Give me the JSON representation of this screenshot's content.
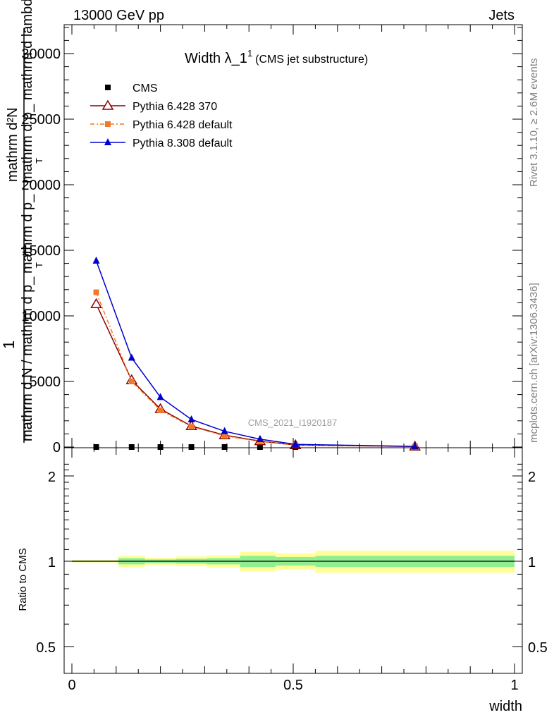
{
  "header": {
    "energy_label": "13000 GeV pp",
    "process_label": "Jets"
  },
  "side_labels": {
    "rivet": "Rivet 3.1.10, ≥ 2.6M events",
    "mcplots": "mcplots.cern.ch [arXiv:1306.3436]"
  },
  "analysis_tag": "CMS_2021_I1920187",
  "chart_data": [
    {
      "type": "line",
      "title_main": "Width λ_1",
      "title_sup": "1",
      "title_sub": "(CMS jet substructure)",
      "ylabel_top_num": "mathrm d²N",
      "ylabel_top_sub": "T",
      "ylabel_top_den": "mathrm d p_ mathrm d lambda",
      "ylabel_top_den2": "mathrm d p_",
      "ylabel_one": "1",
      "ylabel_bottom": "mathrm d N / mathrm d p_",
      "ylabel_bottom2": "mathrm d N",
      "ylabel_bottom_sub": "T",
      "xlim": [
        0,
        1
      ],
      "ylim": [
        0,
        32000
      ],
      "yticks": [
        0,
        5000,
        10000,
        15000,
        20000,
        25000,
        30000
      ],
      "ytick_labels": [
        "0",
        "5000",
        "10000",
        "15000",
        "20000",
        "25000",
        "30000"
      ],
      "log_y": false,
      "legend_position": "top-left",
      "series": [
        {
          "name": "CMS",
          "color": "#000000",
          "marker": "square",
          "x": [
            0.055,
            0.135,
            0.2,
            0.27,
            0.345,
            0.425,
            0.505,
            0.775
          ],
          "y": [
            0,
            0,
            0,
            0,
            0,
            0,
            0,
            0
          ]
        },
        {
          "name": "Pythia 6.428 370",
          "color": "#8b0000",
          "marker": "open-triangle",
          "x": [
            0.055,
            0.135,
            0.2,
            0.27,
            0.345,
            0.425,
            0.505,
            0.775
          ],
          "y": [
            10900,
            5100,
            2900,
            1600,
            900,
            450,
            150,
            40
          ]
        },
        {
          "name": "Pythia 6.428 default",
          "color": "#f07a2c",
          "marker": "square",
          "x": [
            0.055,
            0.135,
            0.2,
            0.27,
            0.345,
            0.425,
            0.505,
            0.775
          ],
          "y": [
            11800,
            5000,
            2800,
            1550,
            850,
            420,
            140,
            35
          ]
        },
        {
          "name": "Pythia 8.308 default",
          "color": "#0000cc",
          "marker": "filled-triangle",
          "x": [
            0.055,
            0.135,
            0.2,
            0.27,
            0.345,
            0.425,
            0.505,
            0.775
          ],
          "y": [
            14200,
            6800,
            3800,
            2100,
            1200,
            600,
            200,
            50
          ]
        }
      ]
    },
    {
      "type": "area",
      "ylabel": "Ratio to CMS",
      "xlabel": "width",
      "xlim": [
        0,
        1
      ],
      "ylim": [
        0.3,
        2.3
      ],
      "yticks": [
        0.5,
        1,
        2
      ],
      "ytick_labels": [
        "0.5",
        "1",
        "2"
      ],
      "xticks": [
        0,
        0.5,
        1
      ],
      "xtick_labels": [
        "0",
        "0.5",
        "1"
      ],
      "reference_line": 1,
      "bands": {
        "bins": [
          [
            0,
            0.105
          ],
          [
            0.105,
            0.165
          ],
          [
            0.165,
            0.235
          ],
          [
            0.235,
            0.305
          ],
          [
            0.305,
            0.38
          ],
          [
            0.38,
            0.46
          ],
          [
            0.46,
            0.55
          ],
          [
            0.55,
            1.0
          ]
        ],
        "inner_low": [
          0.995,
          0.975,
          0.985,
          0.98,
          0.975,
          0.955,
          0.965,
          0.955
        ],
        "inner_high": [
          1.005,
          1.025,
          1.015,
          1.02,
          1.025,
          1.045,
          1.035,
          1.045
        ],
        "outer_low": [
          0.99,
          0.955,
          0.97,
          0.96,
          0.95,
          0.92,
          0.935,
          0.91
        ],
        "outer_high": [
          1.01,
          1.045,
          1.03,
          1.04,
          1.05,
          1.08,
          1.065,
          1.09
        ],
        "inner_color": "#90ee90",
        "outer_color": "#ffff99"
      }
    }
  ]
}
